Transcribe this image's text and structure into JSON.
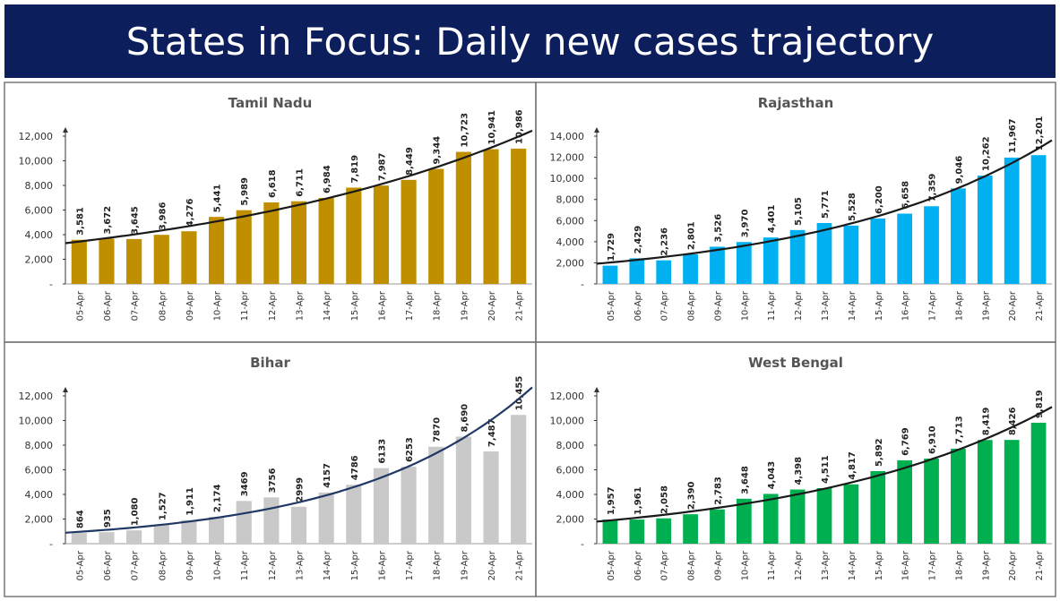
{
  "title": "States in Focus: Daily new cases trajectory",
  "chart_data": [
    {
      "type": "bar",
      "title": "Tamil Nadu",
      "color": "#bf8f00",
      "trendline_color": "#1a1a1a",
      "categories": [
        "05-Apr",
        "06-Apr",
        "07-Apr",
        "08-Apr",
        "09-Apr",
        "10-Apr",
        "11-Apr",
        "12-Apr",
        "13-Apr",
        "14-Apr",
        "15-Apr",
        "16-Apr",
        "17-Apr",
        "18-Apr",
        "19-Apr",
        "20-Apr",
        "21-Apr"
      ],
      "values": [
        3581,
        3672,
        3645,
        3986,
        4276,
        5441,
        5989,
        6618,
        6711,
        6984,
        7819,
        7987,
        8449,
        9344,
        10723,
        10941,
        10986
      ],
      "value_labels": [
        "3,581",
        "3,672",
        "3,645",
        "3,986",
        "4,276",
        "5,441",
        "5,989",
        "6,618",
        "6,711",
        "6,984",
        "7,819",
        "7,987",
        "8,449",
        "9,344",
        "10,723",
        "10,941",
        "10,986"
      ],
      "ylim": [
        0,
        12000
      ],
      "yticks": [
        {
          "value": 0,
          "label": "-"
        },
        {
          "value": 2000,
          "label": "2,000"
        },
        {
          "value": 4000,
          "label": "4,000"
        },
        {
          "value": 6000,
          "label": "6,000"
        },
        {
          "value": 8000,
          "label": "8,000"
        },
        {
          "value": 10000,
          "label": "10,000"
        },
        {
          "value": 12000,
          "label": "12,000"
        }
      ]
    },
    {
      "type": "bar",
      "title": "Rajasthan",
      "color": "#00b0f0",
      "trendline_color": "#1a1a1a",
      "categories": [
        "05-Apr",
        "06-Apr",
        "07-Apr",
        "08-Apr",
        "09-Apr",
        "10-Apr",
        "11-Apr",
        "12-Apr",
        "13-Apr",
        "14-Apr",
        "15-Apr",
        "16-Apr",
        "17-Apr",
        "18-Apr",
        "19-Apr",
        "20-Apr",
        "21-Apr"
      ],
      "values": [
        1729,
        2429,
        2236,
        2801,
        3526,
        3970,
        4401,
        5105,
        5771,
        5528,
        6200,
        6658,
        7359,
        9046,
        10262,
        11967,
        12201
      ],
      "value_labels": [
        "1,729",
        "2,429",
        "2,236",
        "2,801",
        "3,526",
        "3,970",
        "4,401",
        "5,105",
        "5,771",
        "5,528",
        "6,200",
        "6,658",
        "7,359",
        "9,046",
        "10,262",
        "11,967",
        "12,201"
      ],
      "ylim": [
        0,
        14000
      ],
      "yticks": [
        {
          "value": 0,
          "label": "-"
        },
        {
          "value": 2000,
          "label": "2,000"
        },
        {
          "value": 4000,
          "label": "4,000"
        },
        {
          "value": 6000,
          "label": "6,000"
        },
        {
          "value": 8000,
          "label": "8,000"
        },
        {
          "value": 10000,
          "label": "10,000"
        },
        {
          "value": 12000,
          "label": "12,000"
        },
        {
          "value": 14000,
          "label": "14,000"
        }
      ]
    },
    {
      "type": "bar",
      "title": "Bihar",
      "color": "#c9c9c9",
      "trendline_color": "#1f3864",
      "categories": [
        "05-Apr",
        "06-Apr",
        "07-Apr",
        "08-Apr",
        "09-Apr",
        "10-Apr",
        "11-Apr",
        "12-Apr",
        "13-Apr",
        "14-Apr",
        "15-Apr",
        "16-Apr",
        "17-Apr",
        "18-Apr",
        "19-Apr",
        "20-Apr",
        "21-Apr"
      ],
      "values": [
        864,
        935,
        1080,
        1527,
        1911,
        2174,
        3469,
        3756,
        2999,
        4157,
        4786,
        6133,
        6253,
        7870,
        8690,
        7487,
        10455
      ],
      "value_labels": [
        "864",
        "935",
        "1,080",
        "1,527",
        "1,911",
        "2,174",
        "3469",
        "3756",
        "2999",
        "4157",
        "4786",
        "6133",
        "6253",
        "7870",
        "8,690",
        "7,487",
        "10,455"
      ],
      "ylim": [
        0,
        12000
      ],
      "yticks": [
        {
          "value": 0,
          "label": "-"
        },
        {
          "value": 2000,
          "label": "2,000"
        },
        {
          "value": 4000,
          "label": "4,000"
        },
        {
          "value": 6000,
          "label": "6,000"
        },
        {
          "value": 8000,
          "label": "8,000"
        },
        {
          "value": 10000,
          "label": "10,000"
        },
        {
          "value": 12000,
          "label": "12,000"
        }
      ]
    },
    {
      "type": "bar",
      "title": "West Bengal",
      "color": "#00b050",
      "trendline_color": "#1a1a1a",
      "categories": [
        "05-Apr",
        "06-Apr",
        "07-Apr",
        "08-Apr",
        "09-Apr",
        "10-Apr",
        "11-Apr",
        "12-Apr",
        "13-Apr",
        "14-Apr",
        "15-Apr",
        "16-Apr",
        "17-Apr",
        "18-Apr",
        "19-Apr",
        "20-Apr",
        "21-Apr"
      ],
      "values": [
        1957,
        1961,
        2058,
        2390,
        2783,
        3648,
        4043,
        4398,
        4511,
        4817,
        5892,
        6769,
        6910,
        7713,
        8419,
        8426,
        9819
      ],
      "value_labels": [
        "1,957",
        "1,961",
        "2,058",
        "2,390",
        "2,783",
        "3,648",
        "4,043",
        "4,398",
        "4,511",
        "4,817",
        "5,892",
        "6,769",
        "6,910",
        "7,713",
        "8,419",
        "8,426",
        "9,819"
      ],
      "ylim": [
        0,
        12000
      ],
      "yticks": [
        {
          "value": 0,
          "label": "-"
        },
        {
          "value": 2000,
          "label": "2,000"
        },
        {
          "value": 4000,
          "label": "4,000"
        },
        {
          "value": 6000,
          "label": "6,000"
        },
        {
          "value": 8000,
          "label": "8,000"
        },
        {
          "value": 10000,
          "label": "10,000"
        },
        {
          "value": 12000,
          "label": "12,000"
        }
      ]
    }
  ]
}
